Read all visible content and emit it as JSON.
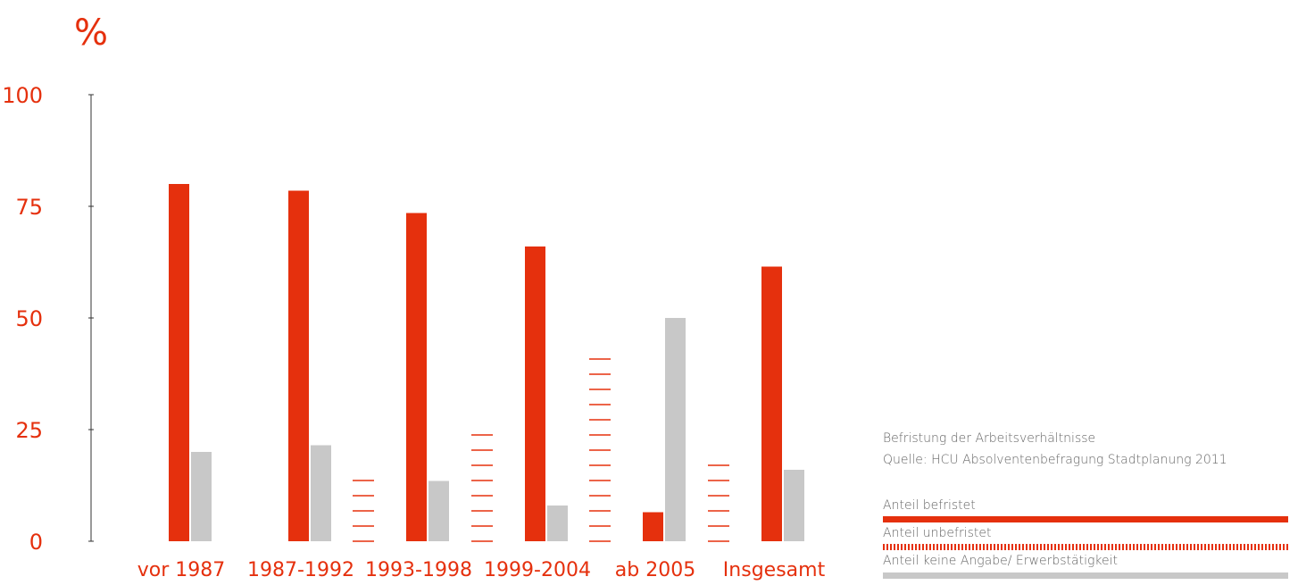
{
  "chart_data": {
    "type": "bar",
    "unit_label": "%",
    "categories": [
      "vor 1987",
      "1987-1992",
      "1993-1998",
      "1999-2004",
      "ab 2005",
      "Insgesamt"
    ],
    "ylim": [
      0,
      100
    ],
    "yticks": [
      0,
      25,
      50,
      75,
      100
    ],
    "series": [
      {
        "name": "Anteil befristet",
        "values": [
          80,
          78.5,
          73.5,
          66,
          6.5,
          61.5
        ]
      },
      {
        "name": "Anteil unbefristet",
        "values": [
          0,
          0,
          13.5,
          26,
          44,
          19
        ]
      },
      {
        "name": "Anteil keine Angabe/ Erwerbstätigkeit",
        "values": [
          20,
          21.5,
          13.5,
          8,
          50,
          16
        ]
      }
    ],
    "colors": {
      "befristet": "#e5300d",
      "unbefristet": "#e5300d",
      "keine_angabe": "#c8c8c8",
      "axis_labels": "#e5300d",
      "axis": "#333333"
    },
    "grid": false
  },
  "legend": {
    "title_line1": "Befristung der Arbeitsverhältnisse",
    "title_line2": "Quelle: HCU Absolventenbefragung Stadtplanung 2011",
    "item1": "Anteil befristet",
    "item2": "Anteil unbefristet",
    "item3": "Anteil keine Angabe/ Erwerbstätigkeit"
  }
}
